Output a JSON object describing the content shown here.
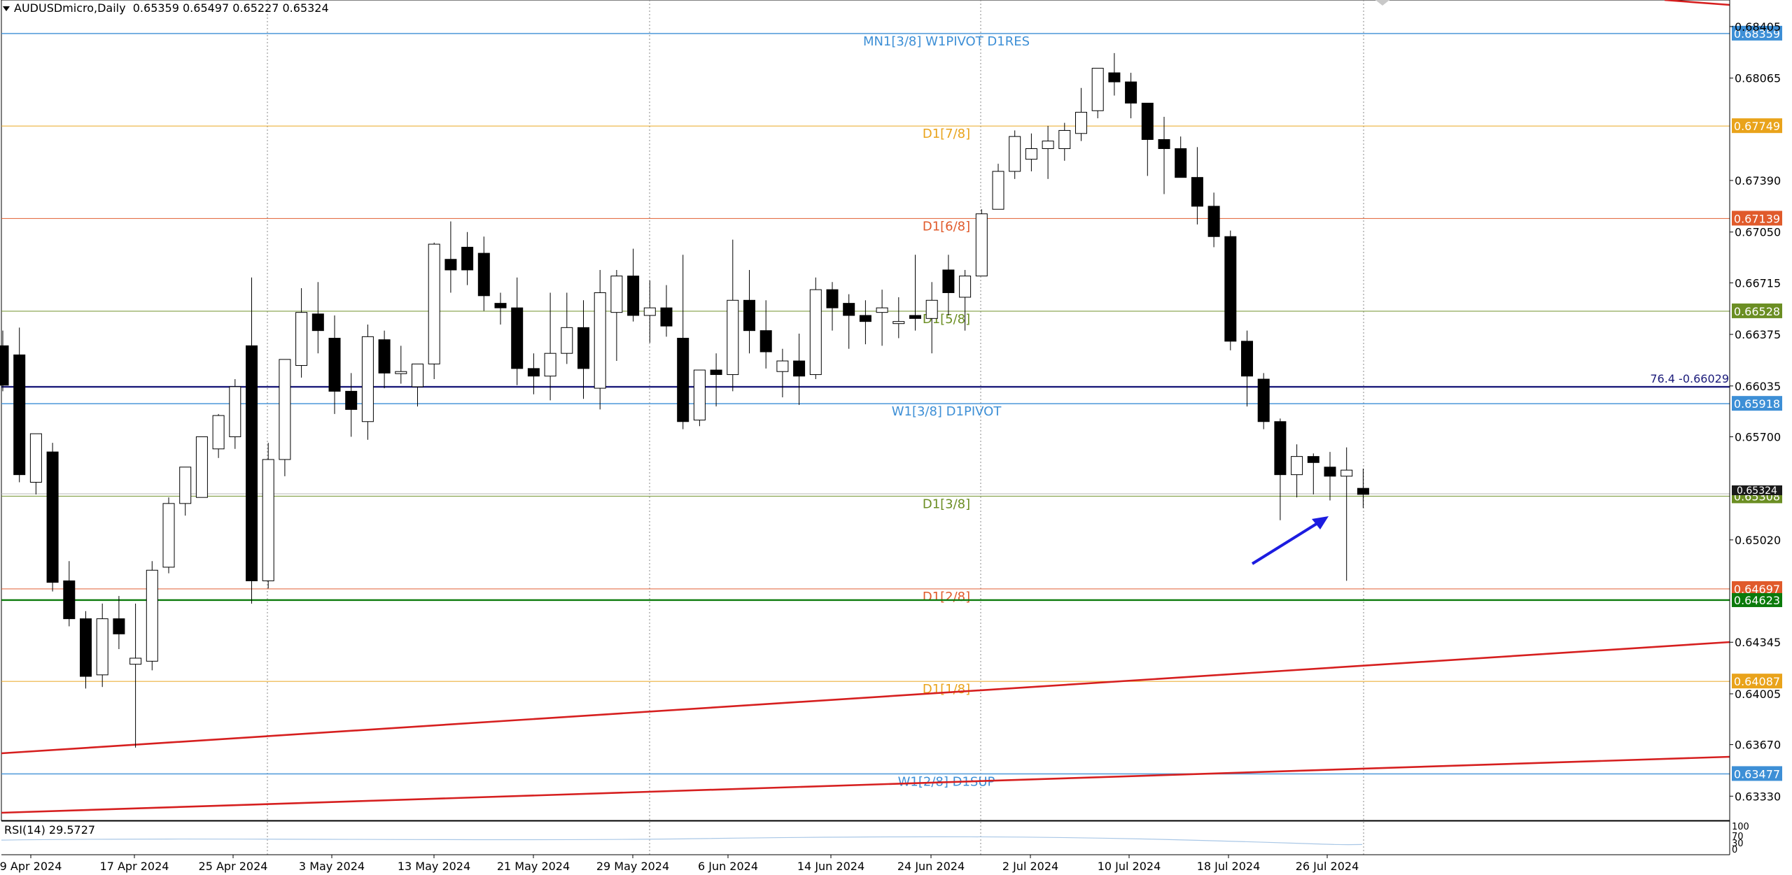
{
  "header": {
    "symbol": "AUDUSDmicro,Daily",
    "ohlc": "0.65359 0.65497 0.65227 0.65324"
  },
  "rsi": {
    "label": "RSI(14) 29.5727",
    "levels": [
      "100",
      "70",
      "30",
      "0"
    ]
  },
  "colors": {
    "blue_level": "#3d8fd6",
    "orange_level": "#e9a31b",
    "red_level": "#e05a2b",
    "green_level": "#6b8e23",
    "dark_green": "#0b7a0b",
    "navy": "#1b1b7a",
    "trend": "#d61f1f",
    "arrow": "#1c1ce0"
  },
  "chart_data": {
    "type": "candlestick",
    "title": "AUDUSDmicro,Daily",
    "ylim": [
      0.6317,
      0.6858
    ],
    "y_ticks": [
      "0.68405",
      "0.68065",
      "0.67390",
      "0.67050",
      "0.66715",
      "0.66375",
      "0.66035",
      "0.65700",
      "0.65020",
      "0.64345",
      "0.64005",
      "0.63670",
      "0.63330"
    ],
    "x_ticks": [
      "9 Apr 2024",
      "17 Apr 2024",
      "25 Apr 2024",
      "3 May 2024",
      "13 May 2024",
      "21 May 2024",
      "29 May 2024",
      "6 Jun 2024",
      "14 Jun 2024",
      "24 Jun 2024",
      "2 Jul 2024",
      "10 Jul 2024",
      "18 Jul 2024",
      "26 Jul 2024"
    ],
    "candles": [
      [
        0.663,
        0.664,
        0.66,
        0.6604
      ],
      [
        0.6624,
        0.6642,
        0.654,
        0.6545
      ],
      [
        0.654,
        0.657,
        0.6532,
        0.6572
      ],
      [
        0.656,
        0.6566,
        0.6468,
        0.6474
      ],
      [
        0.6475,
        0.6488,
        0.6445,
        0.645
      ],
      [
        0.645,
        0.6455,
        0.6404,
        0.6412
      ],
      [
        0.6413,
        0.646,
        0.6405,
        0.645
      ],
      [
        0.645,
        0.6465,
        0.643,
        0.644
      ],
      [
        0.642,
        0.646,
        0.6365,
        0.6424
      ],
      [
        0.6422,
        0.6488,
        0.6416,
        0.6482
      ],
      [
        0.6484,
        0.653,
        0.648,
        0.6526
      ],
      [
        0.6526,
        0.655,
        0.6518,
        0.655
      ],
      [
        0.653,
        0.657,
        0.653,
        0.657
      ],
      [
        0.6562,
        0.6585,
        0.6556,
        0.6584
      ],
      [
        0.657,
        0.6608,
        0.6562,
        0.6603
      ],
      [
        0.663,
        0.6675,
        0.646,
        0.6475
      ],
      [
        0.6475,
        0.6566,
        0.647,
        0.6555
      ],
      [
        0.6555,
        0.6621,
        0.6544,
        0.6621
      ],
      [
        0.6617,
        0.6668,
        0.6609,
        0.6652
      ],
      [
        0.6651,
        0.6672,
        0.6625,
        0.664
      ],
      [
        0.6635,
        0.665,
        0.6585,
        0.66
      ],
      [
        0.66,
        0.6612,
        0.657,
        0.6588
      ],
      [
        0.658,
        0.6644,
        0.6568,
        0.6636
      ],
      [
        0.6634,
        0.664,
        0.6602,
        0.6612
      ],
      [
        0.6612,
        0.663,
        0.6605,
        0.6613
      ],
      [
        0.6603,
        0.6618,
        0.659,
        0.6618
      ],
      [
        0.6618,
        0.6698,
        0.6608,
        0.6697
      ],
      [
        0.6687,
        0.6712,
        0.6665,
        0.668
      ],
      [
        0.6695,
        0.6705,
        0.667,
        0.668
      ],
      [
        0.6691,
        0.6702,
        0.6653,
        0.6663
      ],
      [
        0.6658,
        0.6665,
        0.6644,
        0.6655
      ],
      [
        0.6655,
        0.6675,
        0.6604,
        0.6615
      ],
      [
        0.6615,
        0.6625,
        0.6598,
        0.661
      ],
      [
        0.661,
        0.6665,
        0.6594,
        0.6625
      ],
      [
        0.6625,
        0.6665,
        0.6618,
        0.6642
      ],
      [
        0.6642,
        0.666,
        0.6595,
        0.6615
      ],
      [
        0.6602,
        0.668,
        0.6588,
        0.6665
      ],
      [
        0.6652,
        0.668,
        0.662,
        0.6676
      ],
      [
        0.6676,
        0.6694,
        0.6646,
        0.665
      ],
      [
        0.665,
        0.6673,
        0.6632,
        0.6655
      ],
      [
        0.6655,
        0.667,
        0.6636,
        0.6643
      ],
      [
        0.6635,
        0.669,
        0.6575,
        0.658
      ],
      [
        0.6581,
        0.6612,
        0.6577,
        0.6614
      ],
      [
        0.6614,
        0.6625,
        0.659,
        0.6611
      ],
      [
        0.6611,
        0.67,
        0.66,
        0.666
      ],
      [
        0.666,
        0.668,
        0.6625,
        0.664
      ],
      [
        0.664,
        0.666,
        0.6615,
        0.6626
      ],
      [
        0.6613,
        0.6628,
        0.6596,
        0.662
      ],
      [
        0.662,
        0.6638,
        0.6591,
        0.661
      ],
      [
        0.6611,
        0.6675,
        0.6608,
        0.6667
      ],
      [
        0.6667,
        0.6672,
        0.664,
        0.6655
      ],
      [
        0.6658,
        0.6664,
        0.6628,
        0.665
      ],
      [
        0.665,
        0.666,
        0.6631,
        0.6646
      ],
      [
        0.6652,
        0.6667,
        0.663,
        0.6655
      ],
      [
        0.6646,
        0.6662,
        0.6635,
        0.6646
      ],
      [
        0.665,
        0.669,
        0.664,
        0.6648
      ],
      [
        0.6648,
        0.6672,
        0.6625,
        0.666
      ],
      [
        0.668,
        0.669,
        0.665,
        0.6665
      ],
      [
        0.6662,
        0.668,
        0.664,
        0.6676
      ],
      [
        0.6676,
        0.672,
        0.6676,
        0.6717
      ],
      [
        0.672,
        0.675,
        0.672,
        0.6745
      ],
      [
        0.6745,
        0.6772,
        0.674,
        0.6768
      ],
      [
        0.6753,
        0.677,
        0.6745,
        0.676
      ],
      [
        0.676,
        0.6775,
        0.674,
        0.6765
      ],
      [
        0.676,
        0.6777,
        0.6752,
        0.6772
      ],
      [
        0.677,
        0.68,
        0.6765,
        0.6784
      ],
      [
        0.6785,
        0.6813,
        0.678,
        0.6813
      ],
      [
        0.681,
        0.6823,
        0.6795,
        0.6804
      ],
      [
        0.6804,
        0.681,
        0.678,
        0.679
      ],
      [
        0.679,
        0.679,
        0.6742,
        0.6766
      ],
      [
        0.6766,
        0.6781,
        0.673,
        0.676
      ],
      [
        0.676,
        0.6768,
        0.6745,
        0.6741
      ],
      [
        0.6741,
        0.6761,
        0.671,
        0.6722
      ],
      [
        0.6722,
        0.6731,
        0.6695,
        0.6702
      ],
      [
        0.6702,
        0.6706,
        0.6627,
        0.6633
      ],
      [
        0.6633,
        0.664,
        0.659,
        0.661
      ],
      [
        0.6608,
        0.6612,
        0.6575,
        0.658
      ],
      [
        0.658,
        0.6582,
        0.6515,
        0.6545
      ],
      [
        0.6545,
        0.6565,
        0.653,
        0.6557
      ],
      [
        0.6557,
        0.6559,
        0.6532,
        0.6553
      ],
      [
        0.655,
        0.656,
        0.6528,
        0.6544
      ],
      [
        0.6544,
        0.6563,
        0.6475,
        0.6548
      ],
      [
        0.6536,
        0.6549,
        0.6523,
        0.6532
      ]
    ],
    "levels": [
      {
        "label": "MN1[3/8] W1PIVOT D1RES",
        "price": 0.68359,
        "price_label": "0.68359",
        "color": "blue"
      },
      {
        "label": "D1[7/8]",
        "price": 0.67749,
        "price_label": "0.67749",
        "color": "orange"
      },
      {
        "label": "D1[6/8]",
        "price": 0.67139,
        "price_label": "0.67139",
        "color": "red"
      },
      {
        "label": "D1[5/8]",
        "price": 0.66528,
        "price_label": "0.66528",
        "color": "green"
      },
      {
        "label": "W1[3/8] D1PIVOT",
        "price": 0.65918,
        "price_label": "0.65918",
        "color": "blue"
      },
      {
        "label": "D1[3/8]",
        "price": 0.65308,
        "price_label": "0.65308",
        "color": "green"
      },
      {
        "label": "D1[2/8]",
        "price": 0.64697,
        "price_label": "0.64697",
        "color": "red"
      },
      {
        "label": "D1[1/8]",
        "price": 0.64087,
        "price_label": "0.64087",
        "color": "orange"
      },
      {
        "label": "W1[2/8] D1SUP",
        "price": 0.63477,
        "price_label": "0.63477",
        "color": "blue"
      }
    ],
    "fib_line": {
      "label": "76.4 -0.66029",
      "price": 0.66029
    },
    "support_line": {
      "price": 0.64623,
      "price_label": "0.64623"
    },
    "current_price": {
      "price": 0.65324,
      "price_label": "0.65324"
    }
  }
}
